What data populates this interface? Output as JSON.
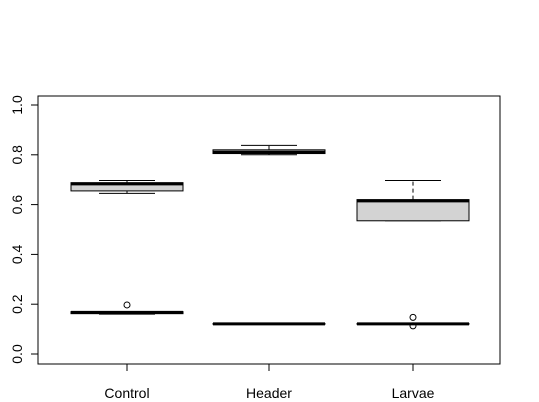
{
  "chart_data": {
    "type": "boxplot",
    "title": "",
    "xlabel": "",
    "ylabel": "",
    "ylim": [
      0.0,
      1.0
    ],
    "y_ticks": [
      "0.0",
      "0.2",
      "0.4",
      "0.6",
      "0.8",
      "1.0"
    ],
    "categories": [
      "Control",
      "Header",
      "Larvae"
    ],
    "box_fill": "#d3d3d3",
    "outline_color": "#000000",
    "series": [
      {
        "boxes": [
          {
            "whisker_low": 0.645,
            "q1": 0.655,
            "median": 0.683,
            "q3": 0.688,
            "whisker_high": 0.697,
            "outliers": []
          },
          {
            "whisker_low": 0.8,
            "q1": 0.805,
            "median": 0.81,
            "q3": 0.82,
            "whisker_high": 0.838,
            "outliers": []
          },
          {
            "whisker_low": 0.535,
            "q1": 0.535,
            "median": 0.615,
            "q3": 0.62,
            "whisker_high": 0.697,
            "outliers": []
          }
        ]
      },
      {
        "boxes": [
          {
            "whisker_low": 0.16,
            "q1": 0.162,
            "median": 0.167,
            "q3": 0.17,
            "whisker_high": 0.17,
            "outliers": [
              0.197
            ]
          },
          {
            "whisker_low": 0.12,
            "q1": 0.12,
            "median": 0.121,
            "q3": 0.122,
            "whisker_high": 0.122,
            "outliers": []
          },
          {
            "whisker_low": 0.12,
            "q1": 0.12,
            "median": 0.121,
            "q3": 0.122,
            "whisker_high": 0.122,
            "outliers": [
              0.147,
              0.113
            ]
          }
        ]
      }
    ]
  }
}
